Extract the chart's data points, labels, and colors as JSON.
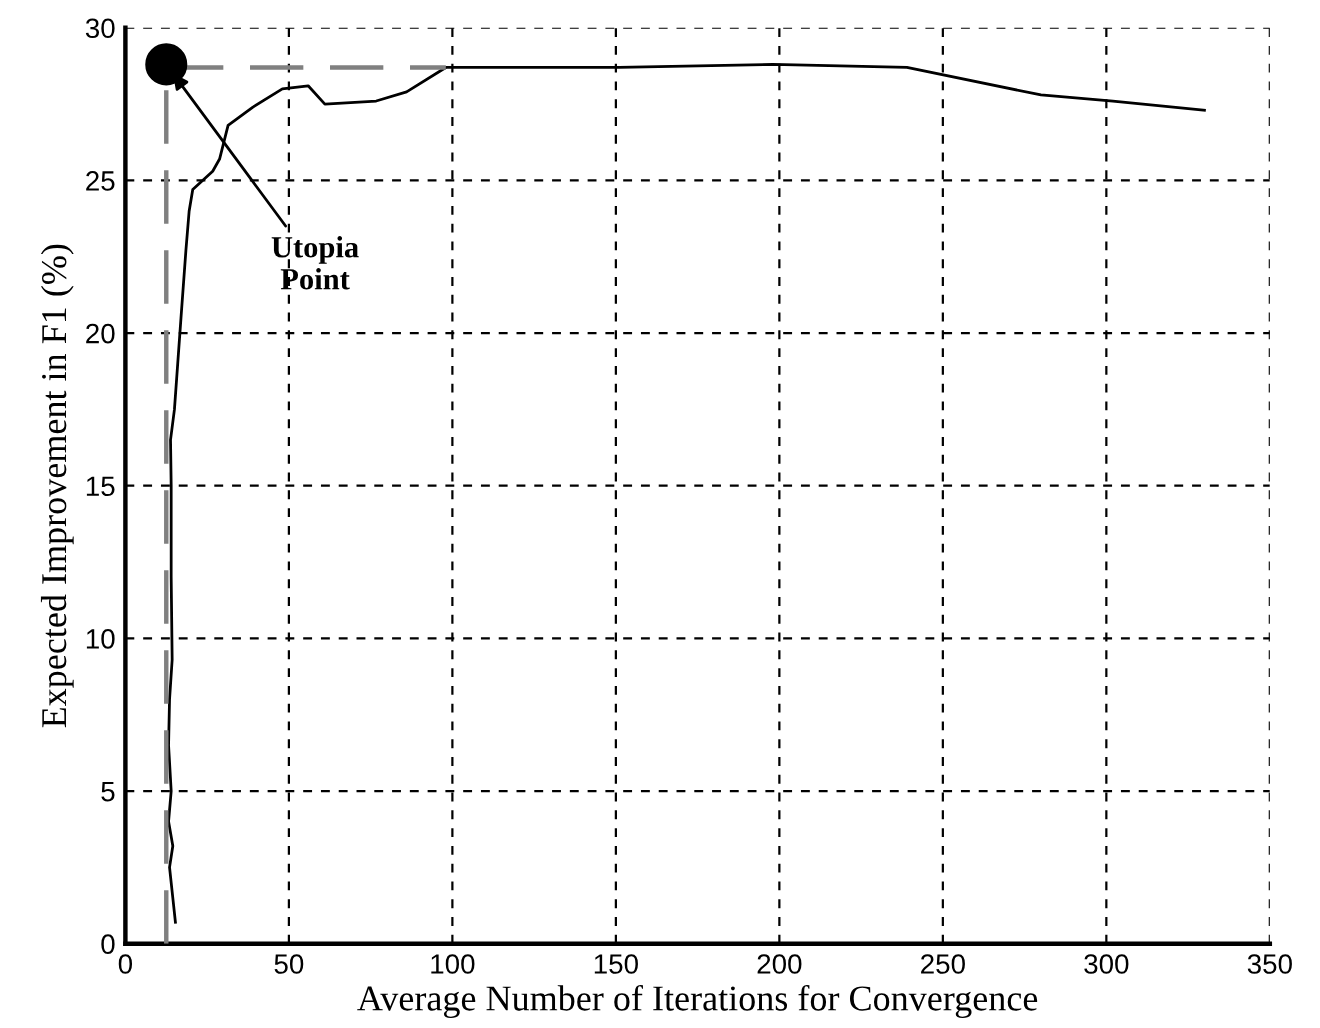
{
  "chart_data": {
    "type": "line",
    "xlabel": "Average Number of Iterations for Convergence",
    "ylabel": "Expected Improvement in F1 (%)",
    "xlim": [
      0,
      350
    ],
    "ylim": [
      0,
      30
    ],
    "xticks": [
      0,
      50,
      100,
      150,
      200,
      250,
      300,
      350
    ],
    "yticks": [
      0,
      5,
      10,
      15,
      20,
      25,
      30
    ],
    "grid": true,
    "legend": false,
    "series": [
      {
        "color": "#000000",
        "line_style": "solid",
        "marker": "none",
        "x": [
          15.3,
          14.5,
          13.5,
          14.5,
          13.2,
          14,
          13.2,
          13.5,
          14.3,
          14,
          14,
          13.8,
          15,
          16,
          17,
          18.5,
          19.5,
          20.6,
          26.7,
          28.8,
          31.4,
          39,
          48,
          55.9,
          61,
          76.7,
          86,
          98,
          151,
          198,
          239,
          280,
          302,
          330
        ],
        "values": [
          0.7,
          1.5,
          2.5,
          3.2,
          4,
          5,
          6.5,
          8,
          9.3,
          12,
          15,
          16.5,
          17.5,
          19,
          20.5,
          22.7,
          24,
          24.7,
          25.3,
          25.7,
          26.8,
          27.4,
          28.0,
          28.1,
          27.5,
          27.6,
          27.9,
          28.7,
          28.7,
          28.8,
          28.7,
          27.8,
          27.6,
          27.3
        ]
      },
      {
        "type": "line",
        "color": "#808080",
        "line_style": "dashed",
        "marker": "none",
        "x": [
          12.5,
          12.5,
          98
        ],
        "values": [
          0,
          28.7,
          28.7
        ]
      },
      {
        "type": "scatter",
        "color": "#000000",
        "marker": "circle",
        "x": [
          12.5
        ],
        "values": [
          28.8
        ]
      }
    ],
    "annotations": [
      {
        "text": "Utopia Point",
        "x": 12.5,
        "y": 28.8
      }
    ]
  }
}
